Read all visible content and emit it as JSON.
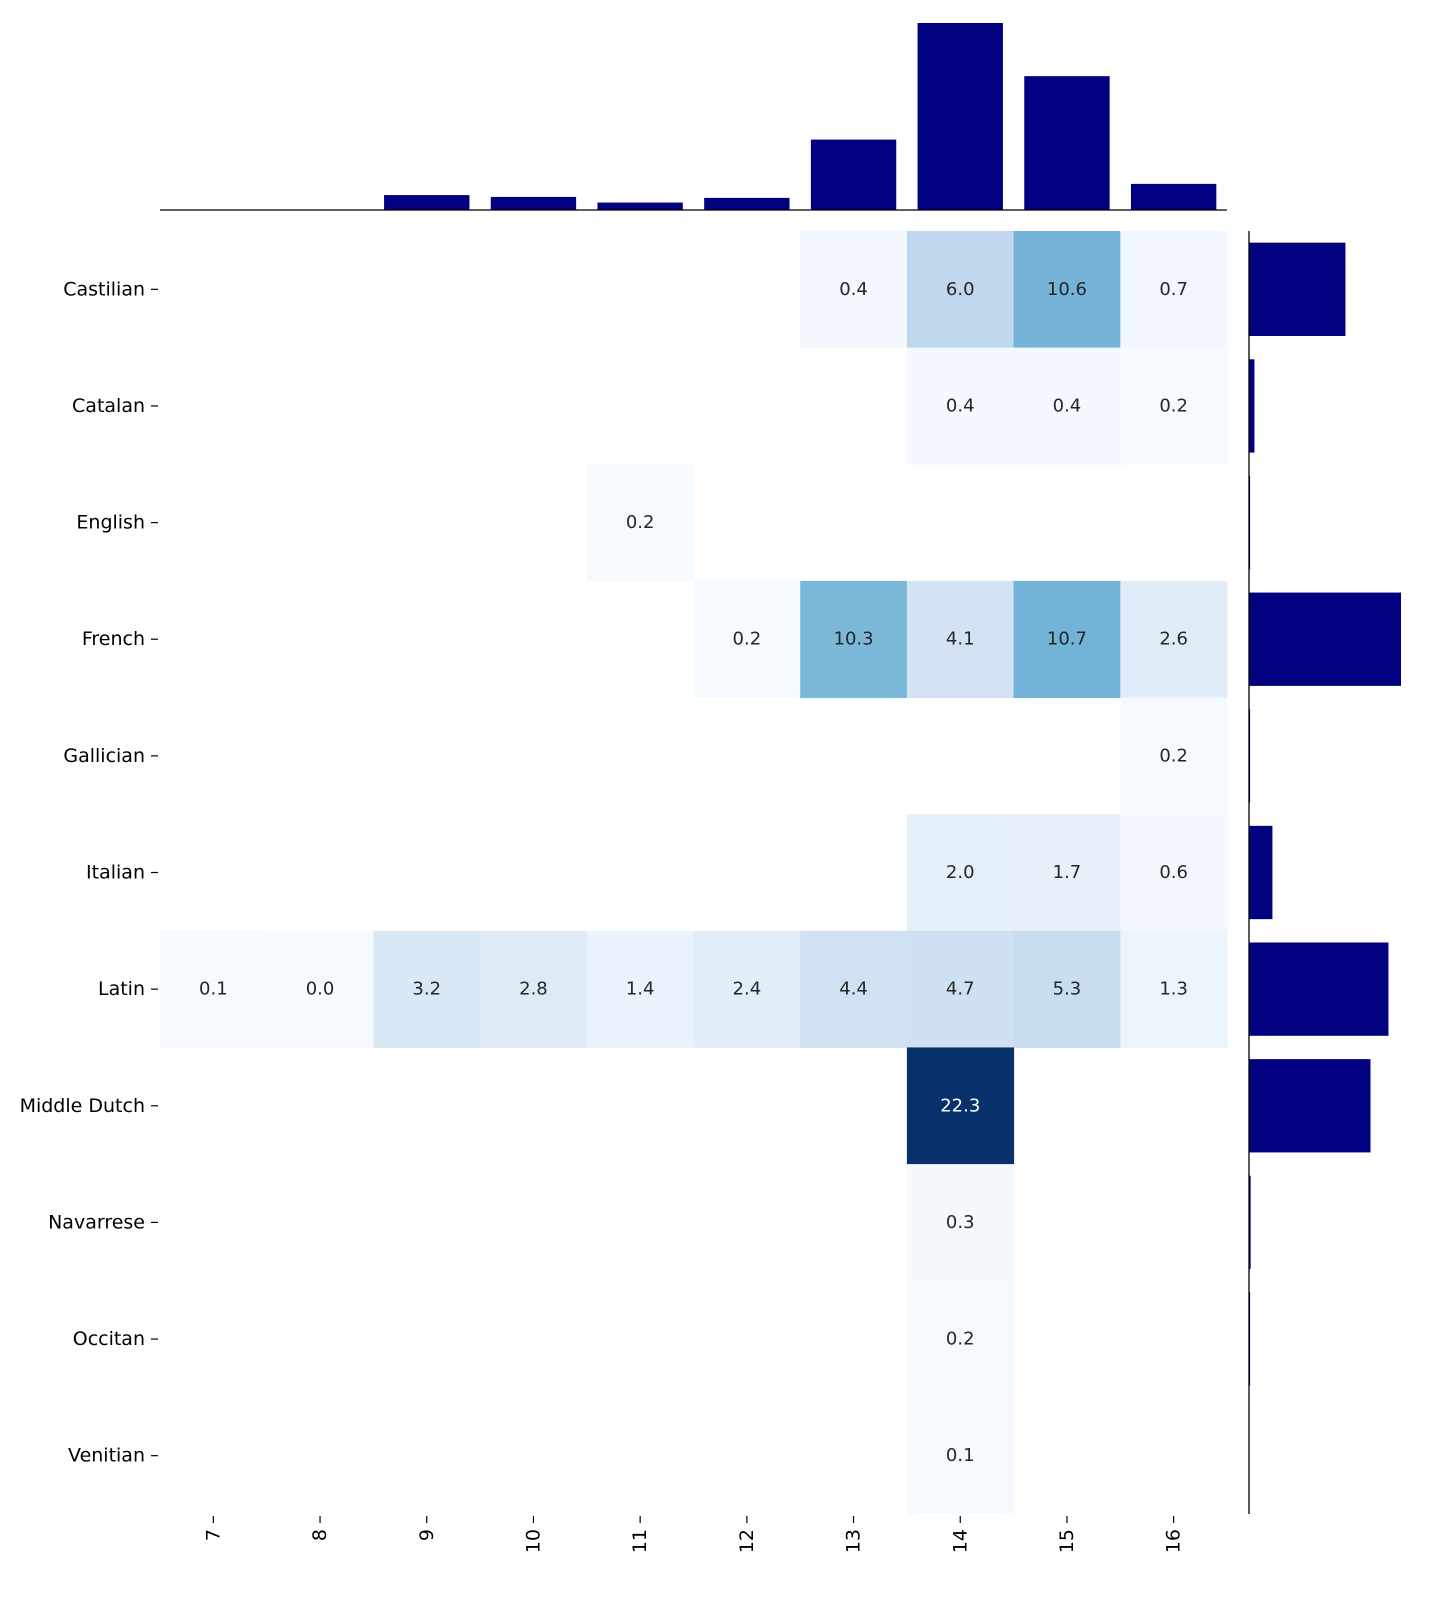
{
  "chart_data": {
    "type": "heatmap",
    "title": "",
    "xlabel": "",
    "ylabel": "",
    "colormap": "Blues",
    "vlim": [
      0,
      22.3
    ],
    "x": [
      "7",
      "8",
      "9",
      "10",
      "11",
      "12",
      "13",
      "14",
      "15",
      "16"
    ],
    "y": [
      "Castilian",
      "Catalan",
      "English",
      "French",
      "Gallician",
      "Italian",
      "Latin",
      "Middle Dutch",
      "Navarrese",
      "Occitan",
      "Venitian"
    ],
    "values": [
      [
        null,
        null,
        null,
        null,
        null,
        null,
        0.4,
        6.0,
        10.6,
        0.7
      ],
      [
        null,
        null,
        null,
        null,
        null,
        null,
        null,
        0.4,
        0.4,
        0.2
      ],
      [
        null,
        null,
        null,
        null,
        0.2,
        null,
        null,
        null,
        null,
        null
      ],
      [
        null,
        null,
        null,
        null,
        null,
        0.2,
        10.3,
        4.1,
        10.7,
        2.6
      ],
      [
        null,
        null,
        null,
        null,
        null,
        null,
        null,
        null,
        null,
        0.2
      ],
      [
        null,
        null,
        null,
        null,
        null,
        null,
        null,
        2.0,
        1.7,
        0.6
      ],
      [
        0.1,
        0.0,
        3.2,
        2.8,
        1.4,
        2.4,
        4.4,
        4.7,
        5.3,
        1.3
      ],
      [
        null,
        null,
        null,
        null,
        null,
        null,
        null,
        22.3,
        null,
        null
      ],
      [
        null,
        null,
        null,
        null,
        null,
        null,
        null,
        0.3,
        null,
        null
      ],
      [
        null,
        null,
        null,
        null,
        null,
        null,
        null,
        0.2,
        null,
        null
      ],
      [
        null,
        null,
        null,
        null,
        null,
        null,
        null,
        0.1,
        null,
        null
      ]
    ],
    "marginal_top": {
      "type": "bar",
      "values": [
        0.1,
        0.0,
        3.2,
        2.8,
        1.6,
        2.6,
        15.1,
        40.1,
        28.7,
        5.6
      ]
    },
    "marginal_right": {
      "type": "barh",
      "values": [
        17.7,
        1.0,
        0.2,
        27.9,
        0.2,
        4.3,
        25.6,
        22.3,
        0.3,
        0.2,
        0.1
      ]
    },
    "bar_color": "#000080"
  }
}
